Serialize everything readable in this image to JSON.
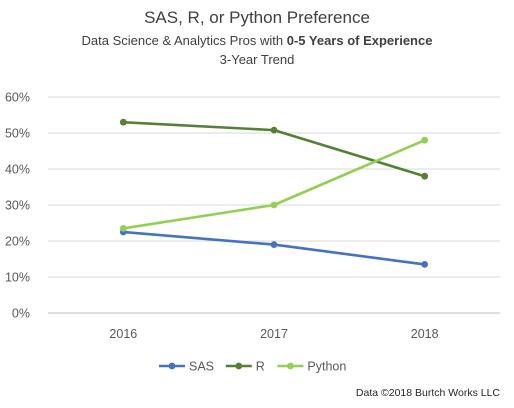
{
  "chart_data": {
    "type": "line",
    "title": "SAS, R, or Python Preference",
    "subtitle_prefix": "Data Science & Analytics Pros with ",
    "subtitle_bold": "0-5 Years of Experience",
    "subtitle2": "3-Year Trend",
    "categories": [
      "2016",
      "2017",
      "2018"
    ],
    "y_ticks": [
      "0%",
      "10%",
      "20%",
      "30%",
      "40%",
      "50%",
      "60%"
    ],
    "ylim": [
      0,
      60
    ],
    "grid": true,
    "legend_position": "bottom",
    "series": [
      {
        "name": "SAS",
        "values": [
          22.5,
          19,
          13.5
        ],
        "color": "#4472c4"
      },
      {
        "name": "R",
        "values": [
          53,
          50.8,
          38
        ],
        "color": "#548235"
      },
      {
        "name": "Python",
        "values": [
          23.5,
          30,
          48
        ],
        "color": "#92d050"
      }
    ],
    "footer": "Data ©2018 Burtch Works LLC"
  }
}
